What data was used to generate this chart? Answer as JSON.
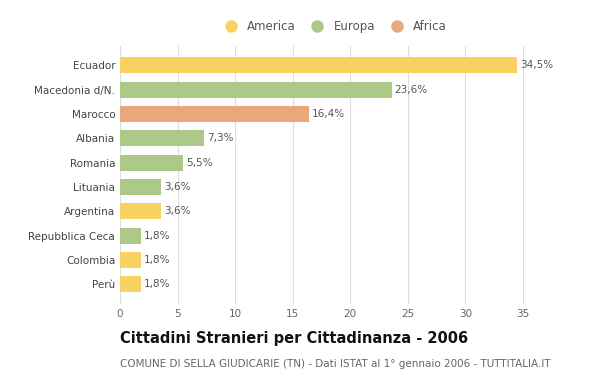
{
  "categories": [
    "Perù",
    "Colombia",
    "Repubblica Ceca",
    "Argentina",
    "Lituania",
    "Romania",
    "Albania",
    "Marocco",
    "Macedonia d/N.",
    "Ecuador"
  ],
  "values": [
    1.8,
    1.8,
    1.8,
    3.6,
    3.6,
    5.5,
    7.3,
    16.4,
    23.6,
    34.5
  ],
  "colors": [
    "#f9d163",
    "#f9d163",
    "#adc98a",
    "#f9d163",
    "#adc98a",
    "#adc98a",
    "#adc98a",
    "#e8a87c",
    "#adc98a",
    "#f9d163"
  ],
  "labels": [
    "1,8%",
    "1,8%",
    "1,8%",
    "3,6%",
    "3,6%",
    "5,5%",
    "7,3%",
    "16,4%",
    "23,6%",
    "34,5%"
  ],
  "legend": [
    {
      "label": "America",
      "color": "#f9d163"
    },
    {
      "label": "Europa",
      "color": "#adc98a"
    },
    {
      "label": "Africa",
      "color": "#e8a87c"
    }
  ],
  "title": "Cittadini Stranieri per Cittadinanza - 2006",
  "subtitle": "COMUNE DI SELLA GIUDICARIE (TN) - Dati ISTAT al 1° gennaio 2006 - TUTTITALIA.IT",
  "xlim": [
    0,
    37
  ],
  "xticks": [
    0,
    5,
    10,
    15,
    20,
    25,
    30,
    35
  ],
  "background_color": "#ffffff",
  "grid_color": "#dddddd",
  "bar_height": 0.65,
  "title_fontsize": 10.5,
  "subtitle_fontsize": 7.5,
  "label_fontsize": 7.5,
  "tick_fontsize": 7.5,
  "legend_fontsize": 8.5
}
